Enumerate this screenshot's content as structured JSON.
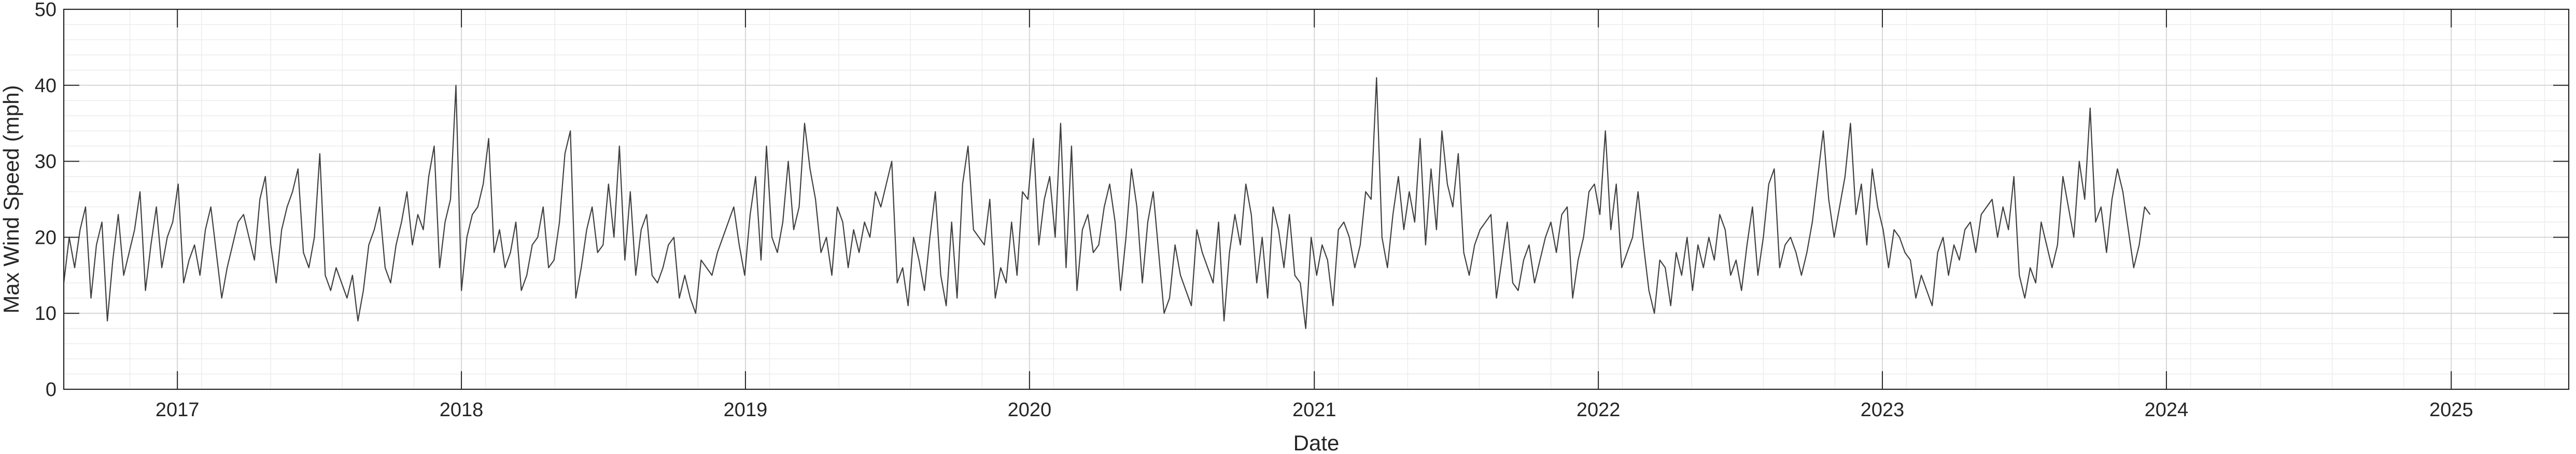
{
  "chart_data": {
    "type": "line",
    "title": "",
    "xlabel": "Date",
    "ylabel": "Max Wind Speed (mph)",
    "x_range": [
      "2016-08-08",
      "2025-06-01"
    ],
    "ylim": [
      0,
      50
    ],
    "y_ticks": [
      "0",
      "10",
      "20",
      "30",
      "40",
      "50"
    ],
    "x_ticks": [
      "2017",
      "2018",
      "2019",
      "2020",
      "2021",
      "2022",
      "2023",
      "2024",
      "2025"
    ],
    "grid": true,
    "minor_grid": true,
    "line_color": "#404040",
    "series": [
      {
        "name": "",
        "sampling": "weekly",
        "start_date": "2016-08-08",
        "values": [
          14,
          20,
          16,
          21,
          24,
          12,
          19,
          22,
          9,
          17,
          23,
          15,
          18,
          21,
          26,
          13,
          19,
          24,
          16,
          20,
          22,
          27,
          14,
          17,
          19,
          15,
          21,
          24,
          18,
          12,
          16,
          19,
          22,
          23,
          20,
          17,
          25,
          28,
          19,
          14,
          21,
          24,
          26,
          29,
          18,
          16,
          20,
          31,
          15,
          13,
          16,
          14,
          12,
          15,
          9,
          13,
          19,
          21,
          24,
          16,
          14,
          19,
          22,
          26,
          19,
          23,
          21,
          28,
          32,
          16,
          22,
          25,
          40,
          13,
          20,
          23,
          24,
          27,
          33,
          18,
          21,
          16,
          18,
          22,
          13,
          15,
          19,
          20,
          24,
          16,
          17,
          22,
          31,
          34,
          12,
          16,
          21,
          24,
          18,
          19,
          27,
          20,
          32,
          17,
          26,
          15,
          21,
          23,
          15,
          14,
          16,
          19,
          20,
          12,
          15,
          12,
          10,
          17,
          16,
          15,
          18,
          20,
          22,
          24,
          19,
          15,
          23,
          28,
          17,
          32,
          20,
          18,
          22,
          30,
          21,
          24,
          35,
          29,
          25,
          18,
          20,
          15,
          24,
          22,
          16,
          21,
          18,
          22,
          20,
          26,
          24,
          27,
          30,
          14,
          16,
          11,
          20,
          17,
          13,
          20,
          26,
          15,
          11,
          22,
          12,
          27,
          32,
          21,
          20,
          19,
          25,
          12,
          16,
          14,
          22,
          15,
          26,
          25,
          33,
          19,
          25,
          28,
          20,
          35,
          16,
          32,
          13,
          21,
          23,
          18,
          19,
          24,
          27,
          22,
          13,
          20,
          29,
          24,
          14,
          22,
          26,
          18,
          10,
          12,
          19,
          15,
          13,
          11,
          21,
          18,
          16,
          14,
          22,
          9,
          18,
          23,
          19,
          27,
          23,
          14,
          20,
          12,
          24,
          21,
          16,
          23,
          15,
          14,
          8,
          20,
          15,
          19,
          17,
          11,
          21,
          22,
          20,
          16,
          19,
          26,
          25,
          41,
          20,
          16,
          23,
          28,
          21,
          26,
          22,
          33,
          19,
          29,
          21,
          34,
          27,
          24,
          31,
          18,
          15,
          19,
          21,
          22,
          23,
          12,
          17,
          22,
          14,
          13,
          17,
          19,
          14,
          17,
          20,
          22,
          18,
          23,
          24,
          12,
          17,
          20,
          26,
          27,
          23,
          34,
          21,
          27,
          16,
          18,
          20,
          26,
          19,
          13,
          10,
          17,
          16,
          11,
          18,
          15,
          20,
          13,
          19,
          16,
          20,
          17,
          23,
          21,
          15,
          17,
          13,
          19,
          24,
          15,
          20,
          27,
          29,
          16,
          19,
          20,
          18,
          15,
          18,
          22,
          28,
          34,
          25,
          20,
          24,
          28,
          35,
          23,
          27,
          19,
          29,
          24,
          21,
          16,
          21,
          20,
          18,
          17,
          12,
          15,
          13,
          11,
          18,
          20,
          15,
          19,
          17,
          21,
          22,
          18,
          23,
          24,
          25,
          20,
          24,
          21,
          28,
          15,
          12,
          16,
          14,
          22,
          19,
          16,
          19,
          28,
          24,
          20,
          30,
          25,
          37,
          22,
          24,
          18,
          25,
          29,
          26,
          21,
          16,
          19,
          24,
          23
        ]
      }
    ]
  }
}
